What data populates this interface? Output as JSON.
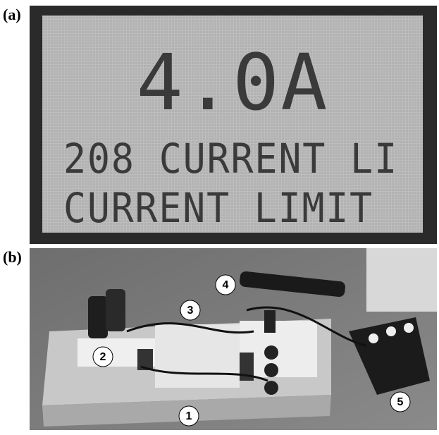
{
  "panels": [
    {
      "label": "(a)",
      "display_lines": [
        "4.0A",
        "208 CURRENT LI",
        "CURRENT LIMIT"
      ]
    },
    {
      "label": "(b)",
      "callouts": [
        "1",
        "2",
        "3",
        "4",
        "5"
      ]
    }
  ]
}
